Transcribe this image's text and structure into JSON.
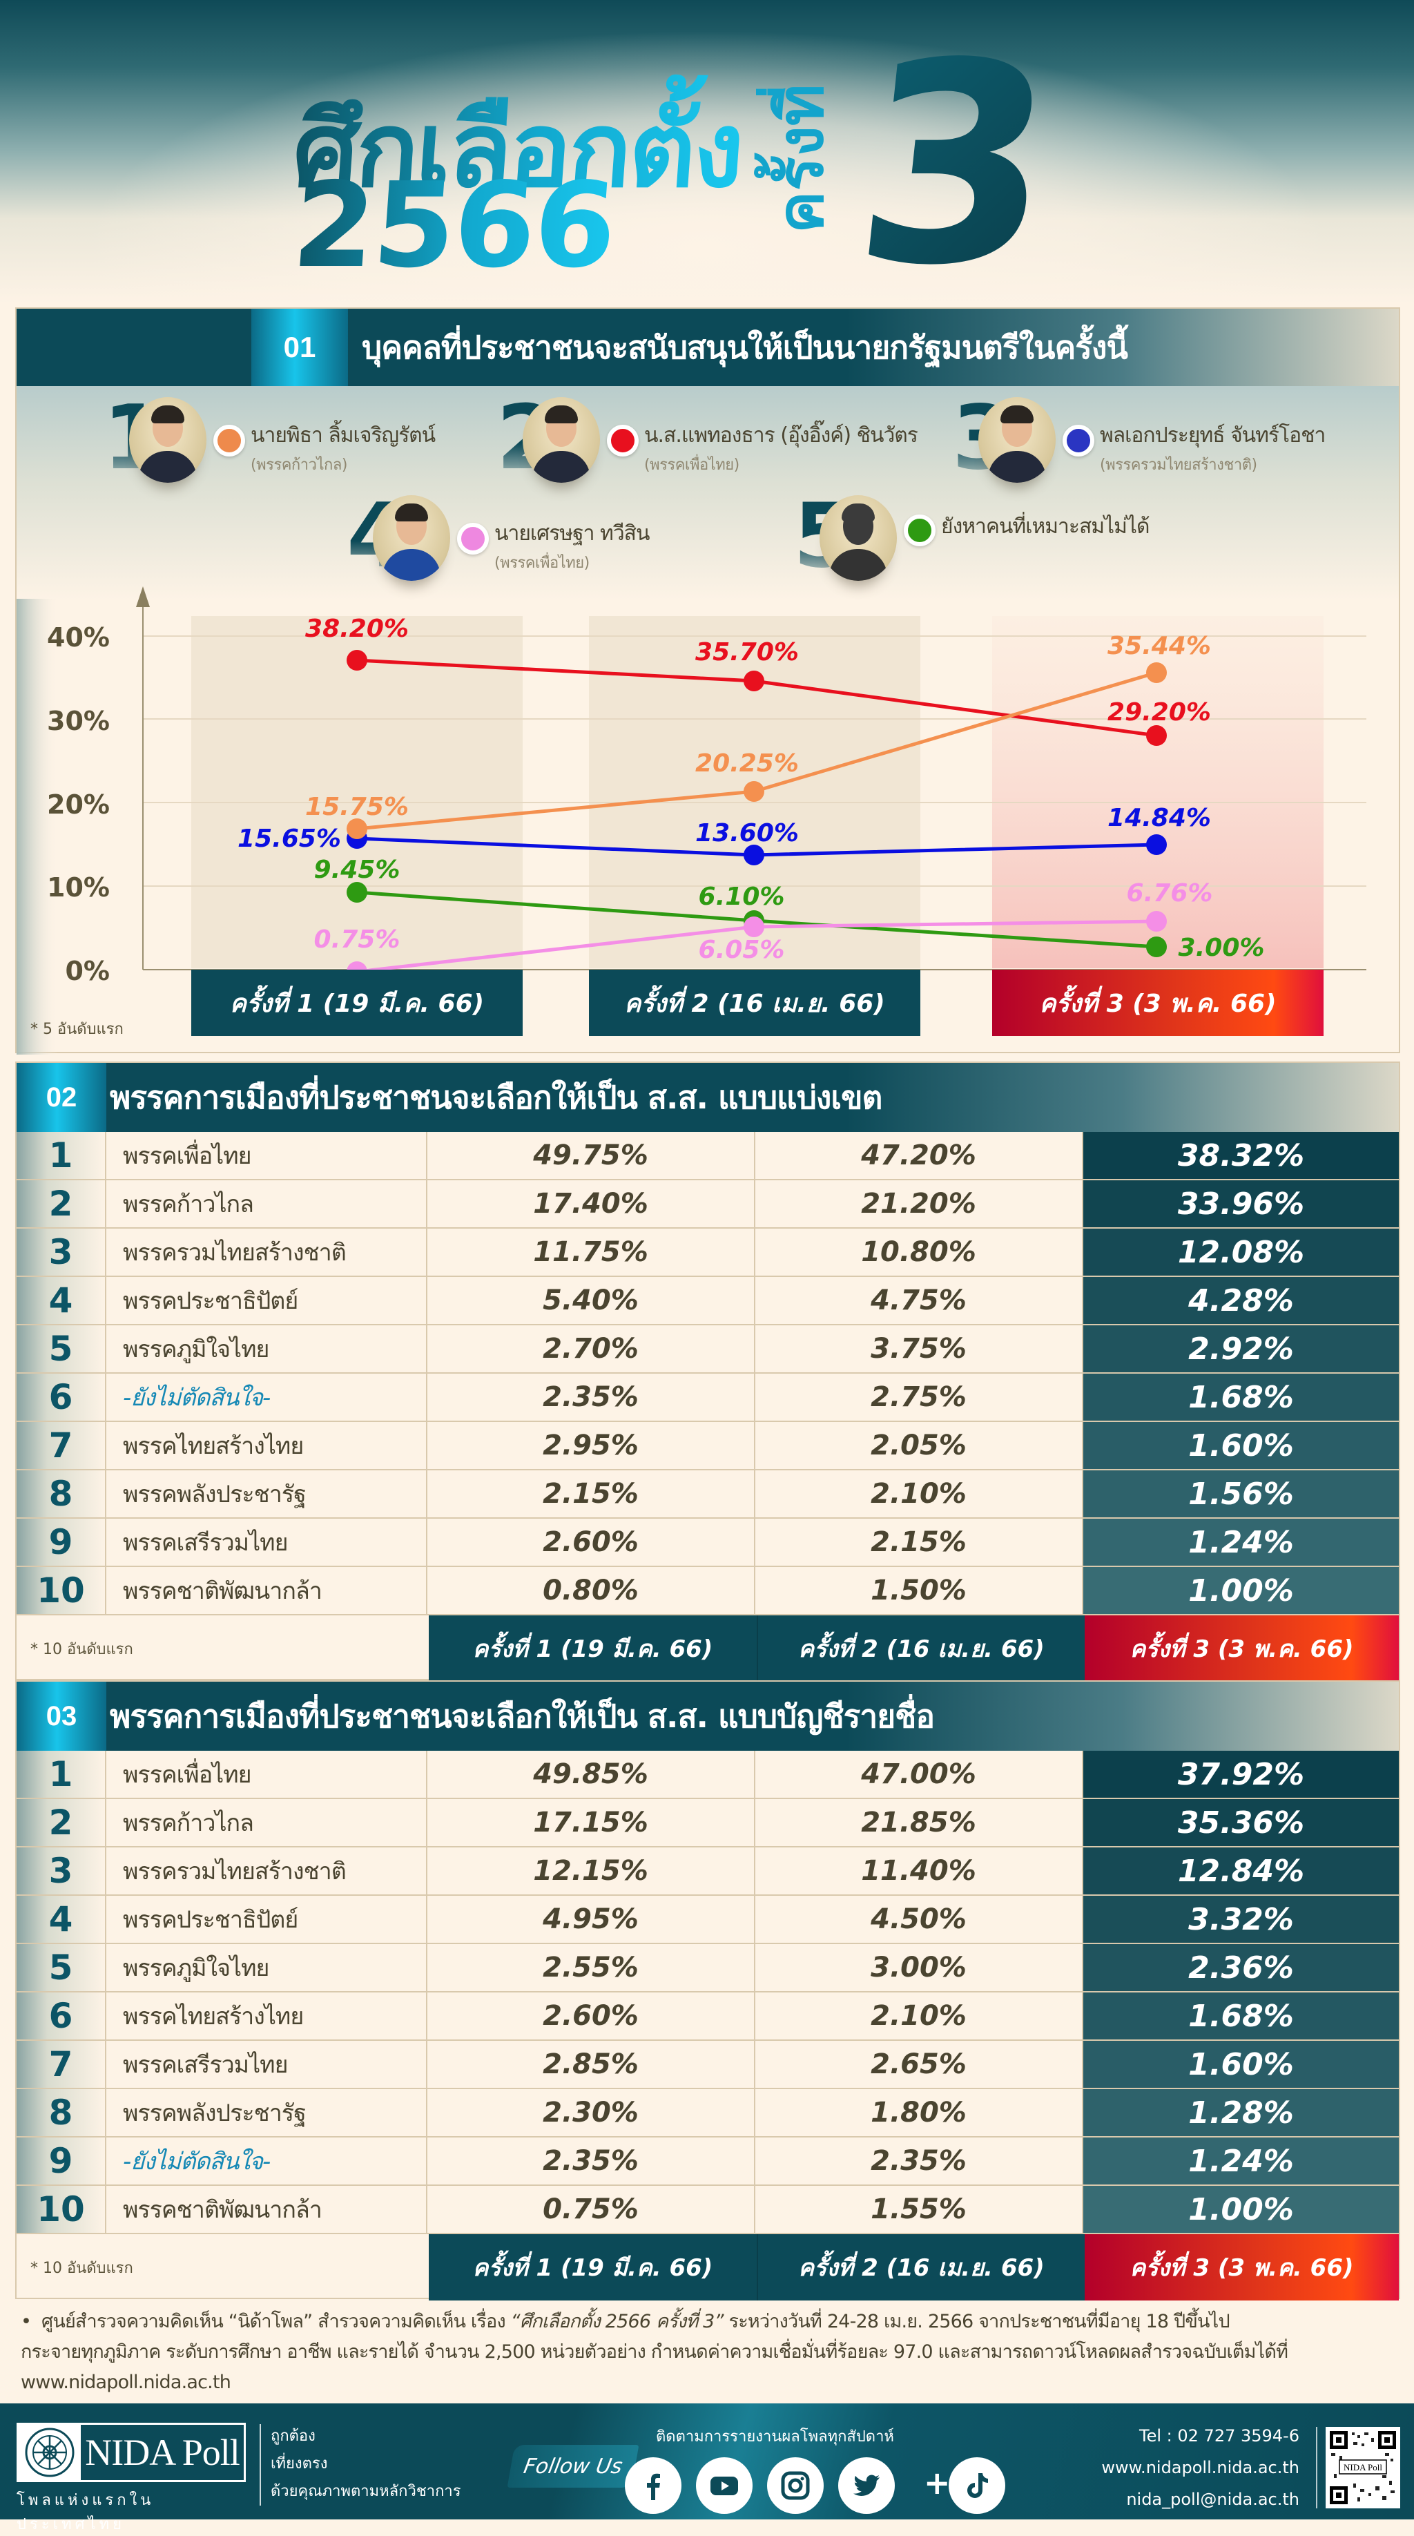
{
  "hero": {
    "title_line1": "ศึกเลือกตั้ง",
    "title_line2": "2566",
    "title_vertical": "ครั้งที่",
    "title_number": "3"
  },
  "section1": {
    "number": "01",
    "title": "บุคคลที่ประชาชนจะสนับสนุนให้เป็นนายกรัฐมนตรีในครั้งนี้",
    "candidates": [
      {
        "rank": "1",
        "name": "นายพิธา ลิ้มเจริญรัตน์",
        "party": "(พรรคก้าวไกล)",
        "color": "#ee8a4c"
      },
      {
        "rank": "2",
        "name": "น.ส.แพทองธาร (อุ๊งอิ๊งค์) ชินวัตร",
        "party": "(พรรคเพื่อไทย)",
        "color": "#e8101e"
      },
      {
        "rank": "3",
        "name": "พลเอกประยุทธ์ จันทร์โอชา",
        "party": "(พรรครวมไทยสร้างชาติ)",
        "color": "#2a35c2"
      },
      {
        "rank": "4",
        "name": "นายเศรษฐา ทวีสิน",
        "party": "(พรรคเพื่อไทย)",
        "color": "#ee88e0"
      },
      {
        "rank": "5",
        "name": "ยังหาคนที่เหมาะสมไม่ได้",
        "party": "",
        "color": "#2e9a12"
      }
    ],
    "note": "* 5 อันดับแรก"
  },
  "chart_data": {
    "type": "line",
    "title": "บุคคลที่ประชาชนจะสนับสนุนให้เป็นนายกรัฐมนตรีในครั้งนี้",
    "categories": [
      "ครั้งที่ 1 (19 มี.ค. 66)",
      "ครั้งที่ 2 (16 เม.ย. 66)",
      "ครั้งที่ 3 (3 พ.ค. 66)"
    ],
    "series": [
      {
        "name": "น.ส.แพทองธาร (อุ๊งอิ๊งค์) ชินวัตร",
        "color": "#e8101e",
        "values": [
          38.2,
          35.7,
          29.2
        ],
        "labels": [
          "38.20%",
          "35.70%",
          "29.20%"
        ]
      },
      {
        "name": "นายพิธา ลิ้มเจริญรัตน์",
        "color": "#f4904f",
        "values": [
          15.75,
          20.25,
          35.44
        ],
        "labels": [
          "15.75%",
          "20.25%",
          "35.44%"
        ]
      },
      {
        "name": "พลเอกประยุทธ์ จันทร์โอชา",
        "color": "#0a0fe0",
        "values": [
          15.65,
          13.6,
          14.84
        ],
        "labels": [
          "15.65%",
          "13.60%",
          "14.84%"
        ]
      },
      {
        "name": "ยังหาคนที่เหมาะสมไม่ได้",
        "color": "#2e9a12",
        "values": [
          9.45,
          6.1,
          3.0
        ],
        "labels": [
          "9.45%",
          "6.10%",
          "3.00%"
        ]
      },
      {
        "name": "นายเศรษฐา ทวีสิน",
        "color": "#f48ee6",
        "values": [
          0.75,
          6.05,
          6.76
        ],
        "labels": [
          "0.75%",
          "6.05%",
          "6.76%"
        ]
      }
    ],
    "y_ticks": [
      "0%",
      "10%",
      "20%",
      "30%",
      "40%"
    ],
    "ylim": [
      0,
      45
    ],
    "xlabel": "",
    "ylabel": "",
    "grid": true,
    "legend_position": "top (candidate cards)"
  },
  "rounds": {
    "r1": "ครั้งที่ 1 (19 มี.ค. 66)",
    "r2": "ครั้งที่ 2 (16 เม.ย. 66)",
    "r3": "ครั้งที่ 3 (3 พ.ค. 66)"
  },
  "section2": {
    "number": "02",
    "title": "พรรคการเมืองที่ประชาชนจะเลือกให้เป็น ส.ส. แบบแบ่งเขต",
    "note": "* 10 อันดับแรก",
    "rows": [
      {
        "rank": "1",
        "party": "พรรคเพื่อไทย",
        "r1": "49.75%",
        "r2": "47.20%",
        "r3": "38.32%"
      },
      {
        "rank": "2",
        "party": "พรรคก้าวไกล",
        "r1": "17.40%",
        "r2": "21.20%",
        "r3": "33.96%"
      },
      {
        "rank": "3",
        "party": "พรรครวมไทยสร้างชาติ",
        "r1": "11.75%",
        "r2": "10.80%",
        "r3": "12.08%"
      },
      {
        "rank": "4",
        "party": "พรรคประชาธิปัตย์",
        "r1": "5.40%",
        "r2": "4.75%",
        "r3": "4.28%"
      },
      {
        "rank": "5",
        "party": "พรรคภูมิใจไทย",
        "r1": "2.70%",
        "r2": "3.75%",
        "r3": "2.92%"
      },
      {
        "rank": "6",
        "party": "-ยังไม่ตัดสินใจ-",
        "r1": "2.35%",
        "r2": "2.75%",
        "r3": "1.68%"
      },
      {
        "rank": "7",
        "party": "พรรคไทยสร้างไทย",
        "r1": "2.95%",
        "r2": "2.05%",
        "r3": "1.60%"
      },
      {
        "rank": "8",
        "party": "พรรคพลังประชารัฐ",
        "r1": "2.15%",
        "r2": "2.10%",
        "r3": "1.56%"
      },
      {
        "rank": "9",
        "party": "พรรคเสรีรวมไทย",
        "r1": "2.60%",
        "r2": "2.15%",
        "r3": "1.24%"
      },
      {
        "rank": "10",
        "party": "พรรคชาติพัฒนากล้า",
        "r1": "0.80%",
        "r2": "1.50%",
        "r3": "1.00%"
      }
    ]
  },
  "section3": {
    "number": "03",
    "title": "พรรคการเมืองที่ประชาชนจะเลือกให้เป็น ส.ส. แบบบัญชีรายชื่อ",
    "note": "* 10 อันดับแรก",
    "rows": [
      {
        "rank": "1",
        "party": "พรรคเพื่อไทย",
        "r1": "49.85%",
        "r2": "47.00%",
        "r3": "37.92%"
      },
      {
        "rank": "2",
        "party": "พรรคก้าวไกล",
        "r1": "17.15%",
        "r2": "21.85%",
        "r3": "35.36%"
      },
      {
        "rank": "3",
        "party": "พรรครวมไทยสร้างชาติ",
        "r1": "12.15%",
        "r2": "11.40%",
        "r3": "12.84%"
      },
      {
        "rank": "4",
        "party": "พรรคประชาธิปัตย์",
        "r1": "4.95%",
        "r2": "4.50%",
        "r3": "3.32%"
      },
      {
        "rank": "5",
        "party": "พรรคภูมิใจไทย",
        "r1": "2.55%",
        "r2": "3.00%",
        "r3": "2.36%"
      },
      {
        "rank": "6",
        "party": "พรรคไทยสร้างไทย",
        "r1": "2.60%",
        "r2": "2.10%",
        "r3": "1.68%"
      },
      {
        "rank": "7",
        "party": "พรรคเสรีรวมไทย",
        "r1": "2.85%",
        "r2": "2.65%",
        "r3": "1.60%"
      },
      {
        "rank": "8",
        "party": "พรรคพลังประชารัฐ",
        "r1": "2.30%",
        "r2": "1.80%",
        "r3": "1.28%"
      },
      {
        "rank": "9",
        "party": "-ยังไม่ตัดสินใจ-",
        "r1": "2.35%",
        "r2": "2.35%",
        "r3": "1.24%"
      },
      {
        "rank": "10",
        "party": "พรรคชาติพัฒนากล้า",
        "r1": "0.75%",
        "r2": "1.55%",
        "r3": "1.00%"
      }
    ]
  },
  "footnote": {
    "bullet": "•",
    "text_a": "ศูนย์สำรวจความคิดเห็น “นิด้าโพล” สำรวจความคิดเห็น เรื่อง ",
    "text_em": "“ศึกเลือกตั้ง 2566 ครั้งที่ 3”",
    "text_b": " ระหว่างวันที่ 24-28 เม.ย. 2566 จากประชาชนที่มีอายุ 18 ปีขึ้นไป",
    "line2": "กระจายทุกภูมิภาค ระดับการศึกษา อาชีพ และรายได้ จำนวน 2,500 หน่วยตัวอย่าง กำหนดค่าความเชื่อมั่นที่ร้อยละ 97.0 และสามารถดาวน์โหลดผลสำรวจฉบับเต็มได้ที่",
    "line3": "www.nidapoll.nida.ac.th"
  },
  "footer": {
    "logo_text": "NIDA Poll",
    "logo_sub": "โพลแห่งแรกในประเทศไทย",
    "motto": [
      "ถูกต้อง",
      "เที่ยงตรง",
      "ด้วยคุณภาพตามหลักวิชาการ"
    ],
    "follow_label": "Follow Us",
    "follow_caption": "ติดตามการรายงานผลโพลทุกสัปดาห์",
    "social": [
      "facebook-icon",
      "youtube-icon",
      "instagram-icon",
      "twitter-icon",
      "tiktok-icon"
    ],
    "plus": "+",
    "tel": "Tel : 02 727 3594-6",
    "website": "www.nidapoll.nida.ac.th",
    "email": "nida_poll@nida.ac.th",
    "qr_label": "NIDA Poll"
  },
  "colors": {
    "teal_dark": "#0c4a58",
    "cyan_accent": "#18c4ea",
    "cream_bg": "#fdf3e6",
    "round3_red": "#e0351a",
    "text_brown": "#4a4430"
  }
}
